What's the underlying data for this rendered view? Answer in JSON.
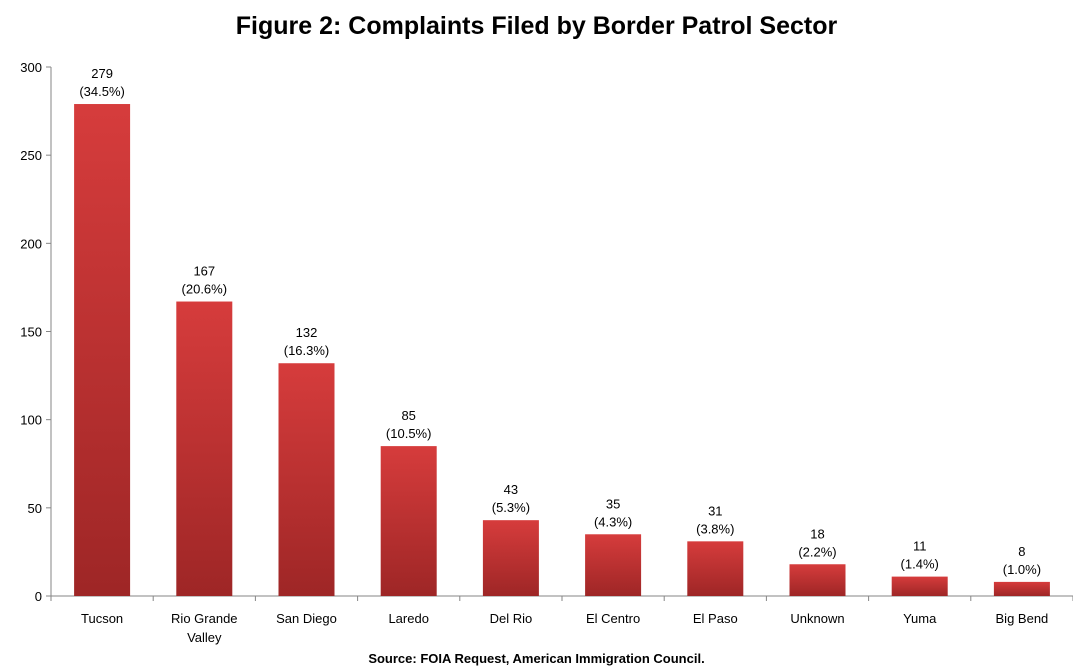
{
  "chart_data": {
    "type": "bar",
    "title": "Figure 2: Complaints Filed by Border Patrol Sector",
    "source": "Source: FOIA Request, American Immigration Council.",
    "xlabel": "",
    "ylabel": "",
    "ylim": [
      0,
      300
    ],
    "yticks": [
      0,
      50,
      100,
      150,
      200,
      250,
      300
    ],
    "grid": false,
    "legend": "none",
    "bar_color_top": "#d63c3c",
    "bar_color_bottom": "#9e2626",
    "categories": [
      [
        "Tucson"
      ],
      [
        "Rio Grande",
        "Valley"
      ],
      [
        "San Diego"
      ],
      [
        "Laredo"
      ],
      [
        "Del Rio"
      ],
      [
        "El Centro"
      ],
      [
        "El Paso"
      ],
      [
        "Unknown"
      ],
      [
        "Yuma"
      ],
      [
        "Big Bend"
      ]
    ],
    "values": [
      279,
      167,
      132,
      85,
      43,
      35,
      31,
      18,
      11,
      8
    ],
    "data_labels": [
      [
        "279",
        "(34.5%)"
      ],
      [
        "167",
        "(20.6%)"
      ],
      [
        "132",
        "(16.3%)"
      ],
      [
        "85",
        "(10.5%)"
      ],
      [
        "43",
        "(5.3%)"
      ],
      [
        "35",
        "(4.3%)"
      ],
      [
        "31",
        "(3.8%)"
      ],
      [
        "18",
        "(2.2%)"
      ],
      [
        "11",
        "(1.4%)"
      ],
      [
        "8",
        "(1.0%)"
      ]
    ]
  }
}
